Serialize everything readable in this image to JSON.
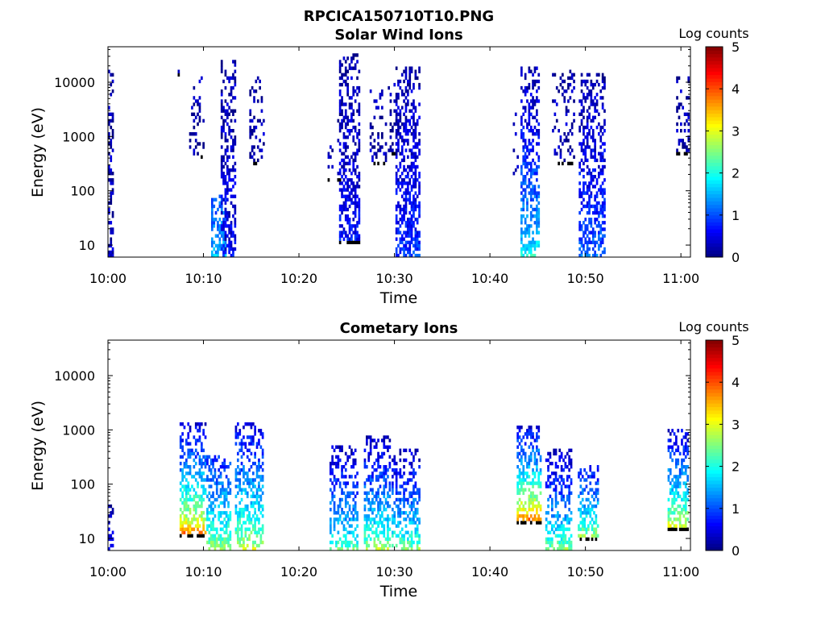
{
  "figure_title": "RPCICA150710T10.PNG",
  "chart_data": [
    {
      "type": "heatmap",
      "title": "Solar Wind Ions",
      "xlabel": "Time",
      "ylabel": "Energy (eV)",
      "x_ticks": [
        "10:00",
        "10:10",
        "10:20",
        "10:30",
        "10:40",
        "10:50",
        "11:00"
      ],
      "x_range_minutes": [
        0,
        61
      ],
      "y_ticks": [
        "10",
        "100",
        "1000",
        "10000"
      ],
      "y_ticks_values": [
        10,
        100,
        1000,
        10000
      ],
      "yscale": "log",
      "ylim": [
        6,
        45000
      ],
      "colorbar": {
        "label": "Log counts",
        "range": [
          0,
          5
        ],
        "ticks": [
          "0",
          "1",
          "2",
          "3",
          "4",
          "5"
        ],
        "colormap": "jet"
      },
      "bursts": [
        {
          "t": [
            0.0,
            0.6
          ],
          "e_min": 6,
          "e_max": 15000,
          "c_low": 0.3,
          "c_high": 0.2,
          "density": 0.55
        },
        {
          "t": [
            7.3,
            7.5
          ],
          "e_min": 14000,
          "e_max": 16000,
          "c_low": 0.2,
          "c_high": 0.2,
          "density": 0.5
        },
        {
          "t": [
            8.5,
            10.0
          ],
          "e_min": 400,
          "e_max": 16000,
          "c_low": 0.25,
          "c_high": 0.2,
          "density": 0.25
        },
        {
          "t": [
            10.8,
            12.2
          ],
          "e_min": 6,
          "e_max": 80,
          "c_low": 1.6,
          "c_high": 1.0,
          "density": 0.65
        },
        {
          "t": [
            11.8,
            13.3
          ],
          "e_min": 6,
          "e_max": 25000,
          "c_low": 0.6,
          "c_high": 0.2,
          "density": 0.55
        },
        {
          "t": [
            14.8,
            16.3
          ],
          "e_min": 300,
          "e_max": 12000,
          "c_low": 0.25,
          "c_high": 0.2,
          "density": 0.3
        },
        {
          "t": [
            23.0,
            24.3
          ],
          "e_min": 150,
          "e_max": 2000,
          "c_low": 0.2,
          "c_high": 0.2,
          "density": 0.08
        },
        {
          "t": [
            24.2,
            26.2
          ],
          "e_min": 12,
          "e_max": 30000,
          "c_low": 0.7,
          "c_high": 0.2,
          "density": 0.6
        },
        {
          "t": [
            27.4,
            29.0
          ],
          "e_min": 300,
          "e_max": 7000,
          "c_low": 0.25,
          "c_high": 0.2,
          "density": 0.25
        },
        {
          "t": [
            29.3,
            30.2
          ],
          "e_min": 500,
          "e_max": 12000,
          "c_low": 0.2,
          "c_high": 0.2,
          "density": 0.2
        },
        {
          "t": [
            30.1,
            32.7
          ],
          "e_min": 6,
          "e_max": 18000,
          "c_low": 0.9,
          "c_high": 0.2,
          "density": 0.6
        },
        {
          "t": [
            42.4,
            43.0
          ],
          "e_min": 150,
          "e_max": 6000,
          "c_low": 0.2,
          "c_high": 0.2,
          "density": 0.1
        },
        {
          "t": [
            43.2,
            45.2
          ],
          "e_min": 6,
          "e_max": 17000,
          "c_low": 2.0,
          "c_high": 0.2,
          "density": 0.6
        },
        {
          "t": [
            46.5,
            48.8
          ],
          "e_min": 300,
          "e_max": 15000,
          "c_low": 0.25,
          "c_high": 0.2,
          "density": 0.3
        },
        {
          "t": [
            49.3,
            52.0
          ],
          "e_min": 6,
          "e_max": 14000,
          "c_low": 1.2,
          "c_high": 0.2,
          "density": 0.55
        },
        {
          "t": [
            59.5,
            61.0
          ],
          "e_min": 500,
          "e_max": 12000,
          "c_low": 0.25,
          "c_high": 0.2,
          "density": 0.35
        }
      ]
    },
    {
      "type": "heatmap",
      "title": "Cometary Ions",
      "xlabel": "Time",
      "ylabel": "Energy (eV)",
      "x_ticks": [
        "10:00",
        "10:10",
        "10:20",
        "10:30",
        "10:40",
        "10:50",
        "11:00"
      ],
      "x_range_minutes": [
        0,
        61
      ],
      "y_ticks": [
        "10",
        "100",
        "1000",
        "10000"
      ],
      "y_ticks_values": [
        10,
        100,
        1000,
        10000
      ],
      "yscale": "log",
      "ylim": [
        6,
        45000
      ],
      "colorbar": {
        "label": "Log counts",
        "range": [
          0,
          5
        ],
        "ticks": [
          "0",
          "1",
          "2",
          "3",
          "4",
          "5"
        ],
        "colormap": "jet"
      },
      "bursts": [
        {
          "t": [
            0.0,
            0.5
          ],
          "e_min": 6,
          "e_max": 60,
          "c_low": 0.6,
          "c_high": 0.3,
          "density": 0.45
        },
        {
          "t": [
            7.5,
            10.2
          ],
          "e_min": 12,
          "e_max": 1200,
          "c_low": 3.8,
          "c_high": 0.4,
          "density": 0.6
        },
        {
          "t": [
            10.3,
            12.8
          ],
          "e_min": 6,
          "e_max": 300,
          "c_low": 2.8,
          "c_high": 0.8,
          "density": 0.6
        },
        {
          "t": [
            13.3,
            16.2
          ],
          "e_min": 6,
          "e_max": 1200,
          "c_low": 3.0,
          "c_high": 0.5,
          "density": 0.55
        },
        {
          "t": [
            23.2,
            26.0
          ],
          "e_min": 6,
          "e_max": 500,
          "c_low": 2.4,
          "c_high": 0.3,
          "density": 0.5
        },
        {
          "t": [
            26.8,
            29.5
          ],
          "e_min": 6,
          "e_max": 700,
          "c_low": 2.8,
          "c_high": 0.3,
          "density": 0.55
        },
        {
          "t": [
            29.7,
            32.6
          ],
          "e_min": 6,
          "e_max": 400,
          "c_low": 2.6,
          "c_high": 0.3,
          "density": 0.5
        },
        {
          "t": [
            42.8,
            45.3
          ],
          "e_min": 20,
          "e_max": 1100,
          "c_low": 4.0,
          "c_high": 0.5,
          "density": 0.6
        },
        {
          "t": [
            45.8,
            48.6
          ],
          "e_min": 6,
          "e_max": 400,
          "c_low": 2.6,
          "c_high": 0.3,
          "density": 0.5
        },
        {
          "t": [
            49.2,
            51.3
          ],
          "e_min": 10,
          "e_max": 200,
          "c_low": 2.8,
          "c_high": 0.6,
          "density": 0.55
        },
        {
          "t": [
            58.6,
            61.0
          ],
          "e_min": 15,
          "e_max": 1000,
          "c_low": 3.2,
          "c_high": 0.4,
          "density": 0.55
        }
      ]
    }
  ]
}
